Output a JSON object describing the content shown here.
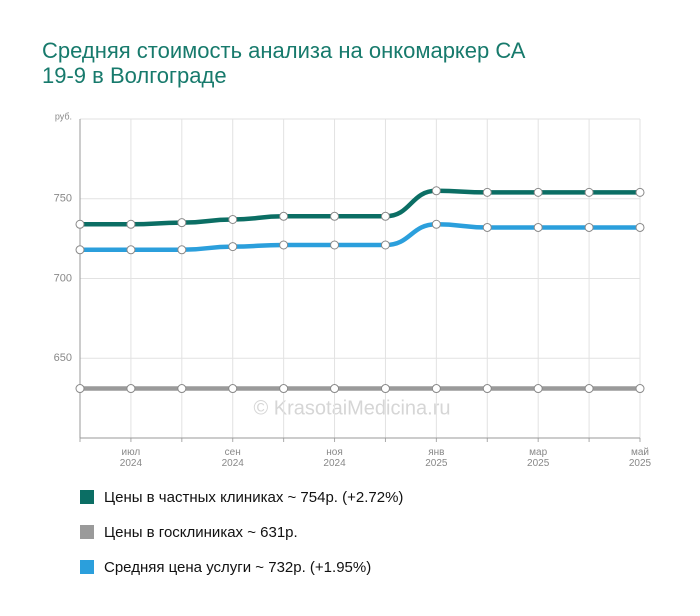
{
  "chart_data": {
    "type": "line",
    "title": [
      "Средняя стоимость анализа на онкомаркер СА",
      "19-9 в Волгограде"
    ],
    "watermark": "© KrasotaiMedicina.ru",
    "categories": [
      null,
      "июл 2024",
      null,
      "сен 2024",
      null,
      "ноя 2024",
      null,
      "янв 2025",
      null,
      "мар 2025",
      null,
      "май 2025"
    ],
    "series": [
      {
        "name": "Цены в частных клиниках ~ 754р. (+2.72%)",
        "color": "#0b6e64",
        "values": [
          734,
          734,
          735,
          737,
          739,
          739,
          739,
          755,
          754,
          754,
          754,
          754
        ]
      },
      {
        "name": "Цены в госклиниках ~ 631р.",
        "color": "#9a9a9a",
        "values": [
          631,
          631,
          631,
          631,
          631,
          631,
          631,
          631,
          631,
          631,
          631,
          631
        ]
      },
      {
        "name": "Средняя цена услуги ~ 732р. (+1.95%)",
        "color": "#2b9fdc",
        "values": [
          718,
          718,
          718,
          720,
          721,
          721,
          721,
          734,
          732,
          732,
          732,
          732
        ]
      }
    ],
    "ylim": [
      600,
      800
    ],
    "yticks": [
      650,
      700,
      750,
      {
        "value": 800,
        "label": "руб."
      }
    ],
    "grid": true
  }
}
